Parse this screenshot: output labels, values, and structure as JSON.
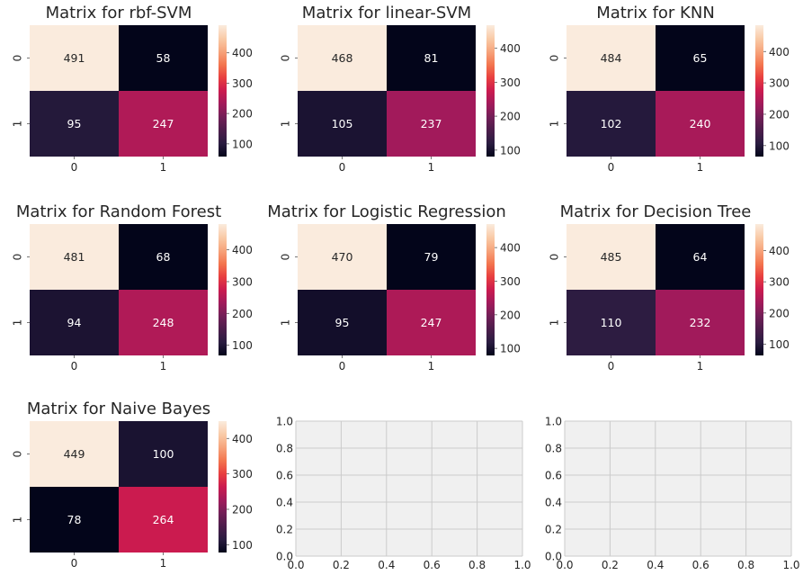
{
  "chart_data": [
    {
      "type": "heatmap",
      "title": "Matrix for rbf-SVM",
      "x_tick_labels": [
        "0",
        "1"
      ],
      "y_tick_labels": [
        "0",
        "1"
      ],
      "values": [
        [
          491,
          58
        ],
        [
          95,
          247
        ]
      ],
      "colorbar_ticks": [
        100,
        200,
        300,
        400
      ],
      "vmin": 58,
      "vmax": 491
    },
    {
      "type": "heatmap",
      "title": "Matrix for linear-SVM",
      "x_tick_labels": [
        "0",
        "1"
      ],
      "y_tick_labels": [
        "0",
        "1"
      ],
      "values": [
        [
          468,
          81
        ],
        [
          105,
          237
        ]
      ],
      "colorbar_ticks": [
        100,
        200,
        300,
        400
      ],
      "vmin": 81,
      "vmax": 468
    },
    {
      "type": "heatmap",
      "title": "Matrix for KNN",
      "x_tick_labels": [
        "0",
        "1"
      ],
      "y_tick_labels": [
        "0",
        "1"
      ],
      "values": [
        [
          484,
          65
        ],
        [
          102,
          240
        ]
      ],
      "colorbar_ticks": [
        100,
        200,
        300,
        400
      ],
      "vmin": 65,
      "vmax": 484
    },
    {
      "type": "heatmap",
      "title": "Matrix for Random Forest",
      "x_tick_labels": [
        "0",
        "1"
      ],
      "y_tick_labels": [
        "0",
        "1"
      ],
      "values": [
        [
          481,
          68
        ],
        [
          94,
          248
        ]
      ],
      "colorbar_ticks": [
        100,
        200,
        300,
        400
      ],
      "vmin": 68,
      "vmax": 481
    },
    {
      "type": "heatmap",
      "title": "Matrix for Logistic Regression",
      "x_tick_labels": [
        "0",
        "1"
      ],
      "y_tick_labels": [
        "0",
        "1"
      ],
      "values": [
        [
          470,
          79
        ],
        [
          95,
          247
        ]
      ],
      "colorbar_ticks": [
        100,
        200,
        300,
        400
      ],
      "vmin": 79,
      "vmax": 470
    },
    {
      "type": "heatmap",
      "title": "Matrix for Decision Tree",
      "x_tick_labels": [
        "0",
        "1"
      ],
      "y_tick_labels": [
        "0",
        "1"
      ],
      "values": [
        [
          485,
          64
        ],
        [
          110,
          232
        ]
      ],
      "colorbar_ticks": [
        100,
        200,
        300,
        400
      ],
      "vmin": 64,
      "vmax": 485
    },
    {
      "type": "heatmap",
      "title": "Matrix for Naive Bayes",
      "x_tick_labels": [
        "0",
        "1"
      ],
      "y_tick_labels": [
        "0",
        "1"
      ],
      "values": [
        [
          449,
          100
        ],
        [
          78,
          264
        ]
      ],
      "colorbar_ticks": [
        100,
        200,
        300,
        400
      ],
      "vmin": 78,
      "vmax": 449
    },
    {
      "type": "empty",
      "x_ticks": [
        "0.0",
        "0.2",
        "0.4",
        "0.6",
        "0.8",
        "1.0"
      ],
      "y_ticks": [
        "0.0",
        "0.2",
        "0.4",
        "0.6",
        "0.8",
        "1.0"
      ],
      "xlim": [
        0,
        1
      ],
      "ylim": [
        0,
        1
      ],
      "grid": true,
      "background": "#f0f0f0"
    },
    {
      "type": "empty",
      "x_ticks": [
        "0.0",
        "0.2",
        "0.4",
        "0.6",
        "0.8",
        "1.0"
      ],
      "y_ticks": [
        "0.0",
        "0.2",
        "0.4",
        "0.6",
        "0.8",
        "1.0"
      ],
      "xlim": [
        0,
        1
      ],
      "ylim": [
        0,
        1
      ],
      "grid": true,
      "background": "#f0f0f0"
    }
  ],
  "colormap": "rocket",
  "colormap_stops": [
    "#03051a",
    "#2a1c40",
    "#4c1d4b",
    "#721f57",
    "#a11a5b",
    "#cb1b4f",
    "#e83f3f",
    "#f3764f",
    "#f6a47c",
    "#f9cba8",
    "#faebdd"
  ]
}
